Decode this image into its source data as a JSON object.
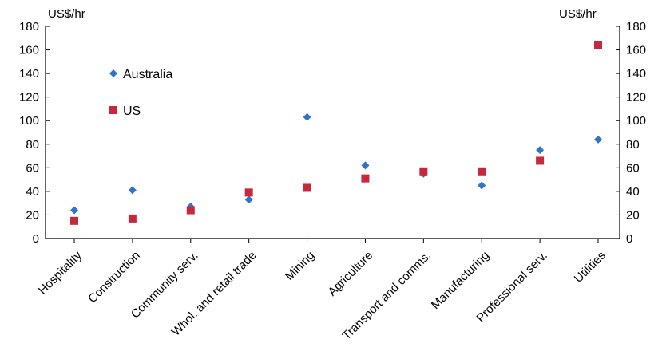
{
  "chart_data": {
    "type": "scatter",
    "title": "",
    "left_unit": "US$/hr",
    "right_unit": "US$/hr",
    "ylim": [
      0,
      180
    ],
    "yticks": [
      0,
      20,
      40,
      60,
      80,
      100,
      120,
      140,
      160,
      180
    ],
    "grid": false,
    "legend_position": "top-left",
    "categories": [
      "Hospitality",
      "Construction",
      "Community serv.",
      "Whol. and retail trade",
      "Mining",
      "Agriculture",
      "Transport and comms.",
      "Manufacturing",
      "Professional serv.",
      "Utilities"
    ],
    "series": [
      {
        "name": "Australia",
        "marker": "diamond",
        "color": "#2e75c8",
        "values": [
          24,
          41,
          27,
          33,
          103,
          62,
          55,
          45,
          75,
          84
        ]
      },
      {
        "name": "US",
        "marker": "square",
        "color": "#c8283c",
        "values": [
          15,
          17,
          24,
          39,
          43,
          51,
          57,
          57,
          66,
          164
        ]
      }
    ]
  }
}
